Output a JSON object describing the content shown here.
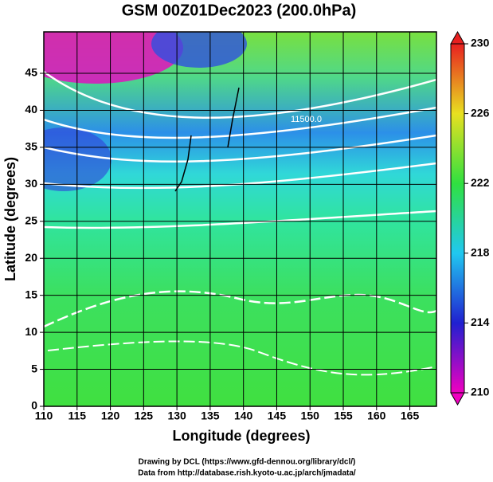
{
  "chart_data": {
    "type": "map",
    "title": "GSM 00Z01Dec2023 (200.0hPa)",
    "x_label": "Longitude (degrees)",
    "y_label": "Latitude  (degrees)",
    "xlim": [
      110,
      169
    ],
    "ylim": [
      0,
      50.6
    ],
    "xticks": [
      110,
      115,
      120,
      125,
      130,
      135,
      140,
      145,
      150,
      155,
      160,
      165
    ],
    "yticks": [
      0,
      5,
      10,
      15,
      20,
      25,
      30,
      35,
      40,
      45
    ],
    "grid": true,
    "colorbar": {
      "lim": [
        210,
        230
      ],
      "ticks": [
        210,
        214,
        218,
        222,
        226,
        230
      ]
    },
    "contour_labels": [
      "11500.0"
    ],
    "credits": [
      "Drawing by DCL (https://www.gfd-dennou.org/library/dcl/)",
      "Data from http://database.rish.kyoto-u.ac.jp/arch/jmadata/"
    ]
  }
}
